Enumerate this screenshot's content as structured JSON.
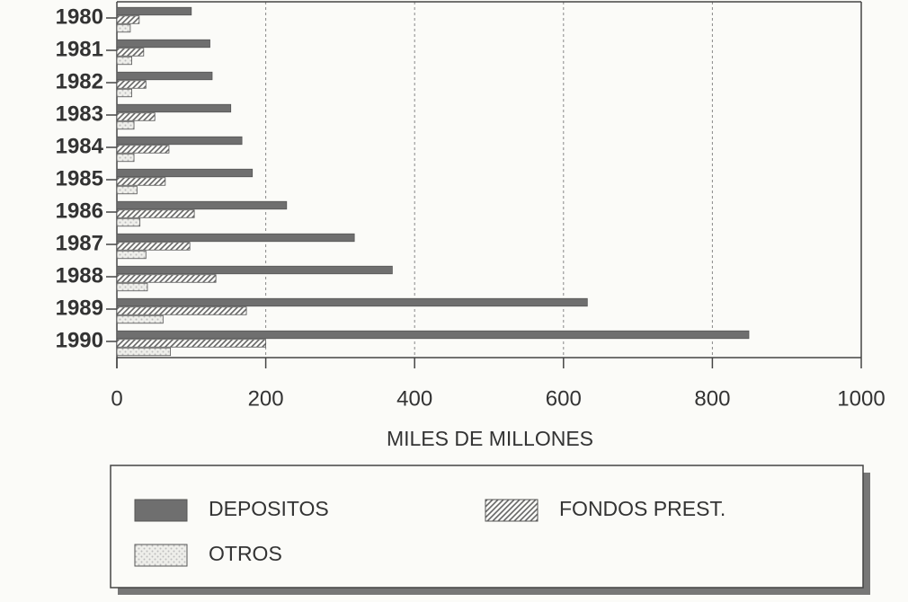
{
  "chart_data": {
    "type": "bar",
    "orientation": "horizontal",
    "x_label": "MILES DE MILLONES",
    "categories": [
      "1980",
      "1981",
      "1982",
      "1983",
      "1984",
      "1985",
      "1986",
      "1987",
      "1988",
      "1989",
      "1990"
    ],
    "series": [
      {
        "name": "DEPOSITOS",
        "color": "#6f6f6f",
        "values": [
          100,
          125,
          128,
          153,
          168,
          182,
          228,
          319,
          370,
          632,
          849
        ]
      },
      {
        "name": "FONDOS PREST.",
        "color": "#666666",
        "values": [
          30,
          36,
          39,
          51,
          70,
          65,
          104,
          98,
          133,
          174,
          200
        ]
      },
      {
        "name": "OTROS",
        "color": "#bdbdbd",
        "values": [
          18,
          20,
          20,
          23,
          23,
          27,
          31,
          39,
          41,
          62,
          72
        ]
      }
    ],
    "xlim": [
      0,
      1000
    ],
    "xticks": [
      0,
      200,
      400,
      600,
      800,
      1000
    ],
    "grid": true
  }
}
